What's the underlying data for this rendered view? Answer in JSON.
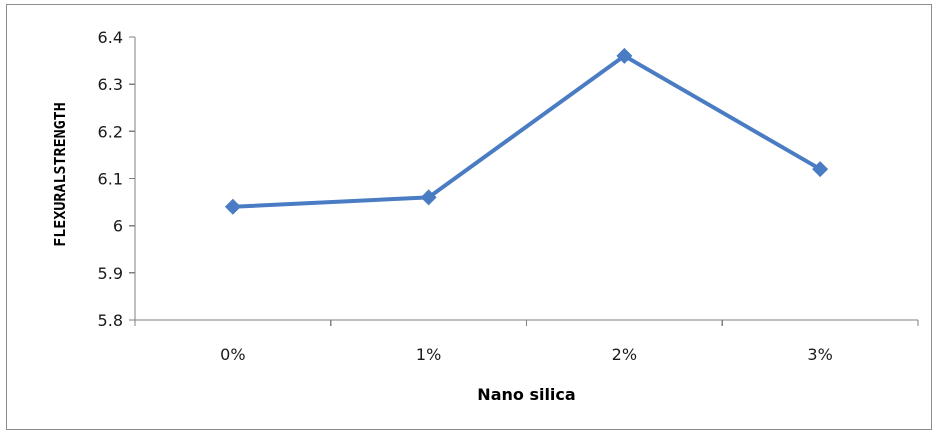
{
  "chart_data": {
    "type": "line",
    "title": "",
    "categories": [
      "0%",
      "1%",
      "2%",
      "3%"
    ],
    "series": [
      {
        "values": [
          6.04,
          6.06,
          6.36,
          6.12
        ],
        "color": "#4a7cc4",
        "marker": "diamond"
      }
    ],
    "xlabel": "Nano silica",
    "ylabel": "FLEXURALSTRENGTH",
    "ylim": [
      5.8,
      6.4
    ],
    "yticks": [
      "5.8",
      "5.9",
      "6",
      "6.1",
      "6.2",
      "6.3",
      "6.4"
    ],
    "grid": false,
    "legend": "none"
  }
}
